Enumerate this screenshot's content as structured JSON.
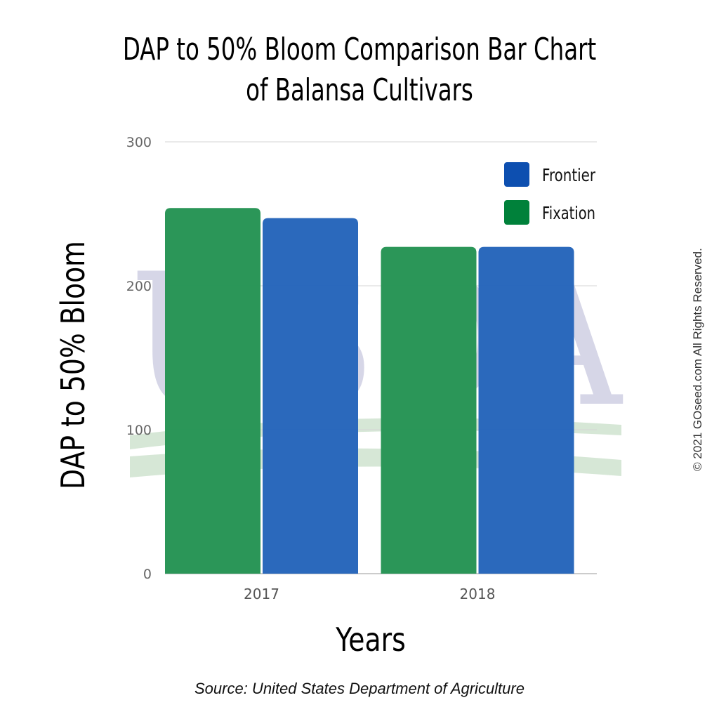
{
  "chart_data": {
    "type": "bar",
    "title_line1": "DAP to 50% Bloom Comparison Bar Chart",
    "title_line2": "of Balansa Cultivars",
    "xlabel": "Years",
    "ylabel": "DAP to 50% Bloom",
    "categories": [
      "2017",
      "2018"
    ],
    "series": [
      {
        "name": "Fixation",
        "values": [
          254,
          227
        ],
        "color": "#279455"
      },
      {
        "name": "Frontier",
        "values": [
          247,
          227
        ],
        "color": "#2766bb"
      }
    ],
    "legend_colors": {
      "Frontier": "#0d4fb0",
      "Fixation": "#00813a"
    },
    "ylim": [
      0,
      300
    ],
    "yticks": [
      "0",
      "100",
      "200",
      "300"
    ],
    "grid": true,
    "legend_placement": "top-right"
  },
  "source": "Source: United States Department of Agriculture",
  "copyright": "© 2021 GOseed.com All Rights Reserved.",
  "watermark": "USDA"
}
